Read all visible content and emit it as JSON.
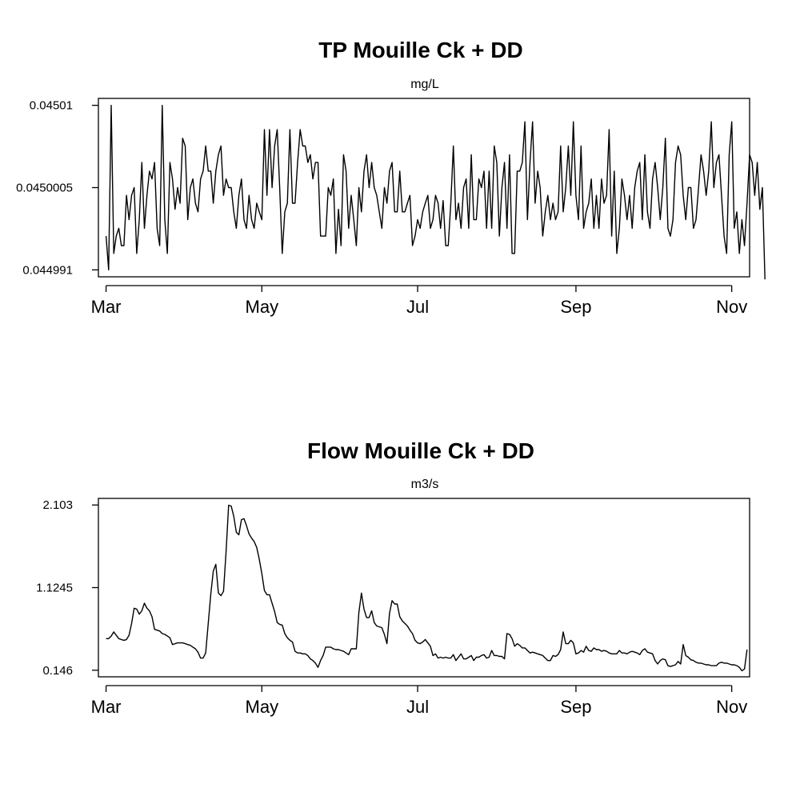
{
  "chart_data": [
    {
      "type": "line",
      "title": "TP Mouille Ck + DD",
      "subtitle": "mg/L",
      "xlabel": "",
      "ylabel": "",
      "x_ticks": [
        {
          "date": "2021-03-01",
          "label": "Mar"
        },
        {
          "date": "2021-05-01",
          "label": "May"
        },
        {
          "date": "2021-07-01",
          "label": "Jul"
        },
        {
          "date": "2021-09-01",
          "label": "Sep"
        },
        {
          "date": "2021-11-01",
          "label": "Nov"
        }
      ],
      "y_ticks": [
        {
          "value": 0.044991,
          "label": "0.044991"
        },
        {
          "value": 0.0450005,
          "label": "0.0450005"
        },
        {
          "value": 0.04501,
          "label": "0.04501"
        }
      ],
      "xlim": [
        "2021-02-26",
        "2021-11-08"
      ],
      "ylim": [
        0.0449902,
        0.0450108
      ],
      "grid": false,
      "legend": "none",
      "series": [
        {
          "start_date": "2021-03-01",
          "values": [
            0.0449949,
            0.044991,
            0.04501,
            0.0449929,
            0.0449949,
            0.0449958,
            0.0449938,
            0.0449938,
            0.0449996,
            0.0449968,
            0.0449996,
            0.0450005,
            0.0449929,
            0.0449968,
            0.0450034,
            0.0449958,
            0.0449996,
            0.0450024,
            0.0450015,
            0.0450034,
            0.0449958,
            0.0449938,
            0.04501,
            0.0449968,
            0.0449929,
            0.0450034,
            0.0450015,
            0.044998,
            0.0450005,
            0.0449987,
            0.0450062,
            0.0450053,
            0.0449968,
            0.0450005,
            0.0450015,
            0.0449987,
            0.0449977,
            0.0450015,
            0.0450024,
            0.0450053,
            0.0450024,
            0.0450024,
            0.0449987,
            0.0450024,
            0.0450043,
            0.0450053,
            0.0449996,
            0.0450015,
            0.0450005,
            0.0450005,
            0.0449977,
            0.0449958,
            0.0449996,
            0.0450015,
            0.0449968,
            0.0449958,
            0.0449996,
            0.0449968,
            0.0449958,
            0.0449987,
            0.0449977,
            0.0449968,
            0.0450072,
            0.0449996,
            0.0450072,
            0.0450005,
            0.0450053,
            0.0450072,
            0.0450005,
            0.0449929,
            0.0449977,
            0.0449987,
            0.0450072,
            0.0449987,
            0.0449987,
            0.0450034,
            0.0450072,
            0.0450053,
            0.0450053,
            0.0450034,
            0.0450043,
            0.0450015,
            0.0450034,
            0.0450034,
            0.0449949,
            0.0449949,
            0.0449949,
            0.0450005,
            0.0449996,
            0.0450015,
            0.0449929,
            0.044998,
            0.0449938,
            0.0450043,
            0.0450024,
            0.0449958,
            0.0449996,
            0.0449968,
            0.0449938,
            0.0450005,
            0.0449977,
            0.0450024,
            0.0450043,
            0.0450005,
            0.0450034,
            0.0450005,
            0.0449996,
            0.0449977,
            0.0449958,
            0.0450005,
            0.0449987,
            0.0450024,
            0.0450034,
            0.0449977,
            0.0449977,
            0.0450024,
            0.0449977,
            0.0449977,
            0.0449987,
            0.0449996,
            0.0449938,
            0.0449949,
            0.0449968,
            0.0449958,
            0.0449977,
            0.0449987,
            0.0449996,
            0.0449958,
            0.0449968,
            0.0449996,
            0.0449987,
            0.0449958,
            0.044999,
            0.0449938,
            0.0449938,
            0.0449987,
            0.0450053,
            0.0449968,
            0.0449987,
            0.0449958,
            0.0450005,
            0.0450015,
            0.0449958,
            0.0450043,
            0.0449968,
            0.0449968,
            0.0450015,
            0.0450005,
            0.0450024,
            0.0449958,
            0.0450024,
            0.0449958,
            0.0450053,
            0.0450034,
            0.0449949,
            0.0450005,
            0.0450034,
            0.0449958,
            0.0450043,
            0.0449929,
            0.0449929,
            0.0450024,
            0.0450024,
            0.0450034,
            0.0450081,
            0.0449968,
            0.0450034,
            0.0450081,
            0.0449987,
            0.0450024,
            0.0450005,
            0.0449949,
            0.0449977,
            0.0449996,
            0.0449968,
            0.0449987,
            0.0449968,
            0.0449977,
            0.0450053,
            0.0449977,
            0.0450005,
            0.0450053,
            0.0449996,
            0.0450081,
            0.0449996,
            0.0449968,
            0.0450053,
            0.0449958,
            0.0449977,
            0.0449987,
            0.0450015,
            0.0449958,
            0.0449996,
            0.0449958,
            0.0450015,
            0.0449987,
            0.0449996,
            0.0450072,
            0.0449949,
            0.0450024,
            0.0449929,
            0.0449958,
            0.0450015,
            0.0449996,
            0.0449968,
            0.0449996,
            0.0449958,
            0.0450005,
            0.0450024,
            0.0450034,
            0.0449968,
            0.0450043,
            0.0449977,
            0.0449958,
            0.0450015,
            0.0450034,
            0.0450005,
            0.0449968,
            0.0450005,
            0.0450062,
            0.0449958,
            0.0449949,
            0.0449968,
            0.0450034,
            0.0450053,
            0.0450043,
            0.0449996,
            0.0449968,
            0.0450005,
            0.0450005,
            0.0449958,
            0.0449968,
            0.0450005,
            0.0450043,
            0.0450024,
            0.0449996,
            0.0450024,
            0.0450081,
            0.0450005,
            0.0450034,
            0.0450043,
            0.0449996,
            0.0449949,
            0.0449929,
            0.0450043,
            0.0450081,
            0.0449958,
            0.0449977,
            0.0449929,
            0.0449968,
            0.0449938,
            0.0449987,
            0.0450043,
            0.0450034,
            0.0449996,
            0.0450034,
            0.044998,
            0.0450005,
            0.0449899
          ]
        }
      ]
    },
    {
      "type": "line",
      "title": "Flow Mouille Ck + DD",
      "subtitle": "m3/s",
      "xlabel": "",
      "ylabel": "",
      "x_ticks": [
        {
          "date": "2021-03-01",
          "label": "Mar"
        },
        {
          "date": "2021-05-01",
          "label": "May"
        },
        {
          "date": "2021-07-01",
          "label": "Jul"
        },
        {
          "date": "2021-09-01",
          "label": "Sep"
        },
        {
          "date": "2021-11-01",
          "label": "Nov"
        }
      ],
      "y_ticks": [
        {
          "value": 0.146,
          "label": "0.146"
        },
        {
          "value": 1.1245,
          "label": "1.1245"
        },
        {
          "value": 2.103,
          "label": "2.103"
        }
      ],
      "xlim": [
        "2021-02-26",
        "2021-11-08"
      ],
      "ylim": [
        0.068,
        2.181
      ],
      "grid": false,
      "legend": "none",
      "series": [
        {
          "start_date": "2021-03-01",
          "values": [
            0.52,
            0.52,
            0.55,
            0.6,
            0.56,
            0.52,
            0.51,
            0.5,
            0.51,
            0.56,
            0.7,
            0.88,
            0.87,
            0.81,
            0.85,
            0.94,
            0.88,
            0.85,
            0.78,
            0.63,
            0.62,
            0.61,
            0.58,
            0.57,
            0.55,
            0.53,
            0.45,
            0.46,
            0.47,
            0.47,
            0.47,
            0.46,
            0.45,
            0.44,
            0.42,
            0.4,
            0.36,
            0.29,
            0.29,
            0.35,
            0.7,
            1.05,
            1.32,
            1.4,
            1.06,
            1.03,
            1.08,
            1.55,
            2.1,
            2.09,
            1.97,
            1.78,
            1.75,
            1.93,
            1.94,
            1.86,
            1.76,
            1.71,
            1.67,
            1.6,
            1.46,
            1.29,
            1.09,
            1.04,
            1.04,
            0.94,
            0.84,
            0.71,
            0.69,
            0.68,
            0.58,
            0.53,
            0.5,
            0.48,
            0.37,
            0.35,
            0.35,
            0.34,
            0.34,
            0.32,
            0.28,
            0.26,
            0.23,
            0.18,
            0.26,
            0.32,
            0.42,
            0.42,
            0.42,
            0.4,
            0.39,
            0.39,
            0.38,
            0.37,
            0.35,
            0.33,
            0.4,
            0.4,
            0.4,
            0.83,
            1.06,
            0.87,
            0.77,
            0.77,
            0.85,
            0.71,
            0.67,
            0.66,
            0.65,
            0.57,
            0.46,
            0.82,
            0.97,
            0.93,
            0.93,
            0.78,
            0.73,
            0.7,
            0.67,
            0.62,
            0.58,
            0.5,
            0.47,
            0.46,
            0.48,
            0.51,
            0.47,
            0.43,
            0.32,
            0.34,
            0.29,
            0.3,
            0.29,
            0.3,
            0.29,
            0.29,
            0.33,
            0.26,
            0.3,
            0.34,
            0.28,
            0.28,
            0.3,
            0.32,
            0.26,
            0.3,
            0.3,
            0.32,
            0.33,
            0.29,
            0.3,
            0.38,
            0.32,
            0.32,
            0.31,
            0.31,
            0.28,
            0.58,
            0.57,
            0.52,
            0.43,
            0.46,
            0.44,
            0.41,
            0.41,
            0.38,
            0.35,
            0.36,
            0.35,
            0.34,
            0.33,
            0.32,
            0.29,
            0.26,
            0.26,
            0.32,
            0.31,
            0.33,
            0.39,
            0.6,
            0.46,
            0.46,
            0.5,
            0.47,
            0.34,
            0.35,
            0.38,
            0.36,
            0.43,
            0.38,
            0.37,
            0.41,
            0.39,
            0.39,
            0.37,
            0.38,
            0.37,
            0.35,
            0.34,
            0.34,
            0.34,
            0.38,
            0.35,
            0.35,
            0.34,
            0.36,
            0.37,
            0.36,
            0.35,
            0.33,
            0.38,
            0.4,
            0.36,
            0.35,
            0.34,
            0.26,
            0.22,
            0.26,
            0.28,
            0.27,
            0.2,
            0.19,
            0.2,
            0.21,
            0.25,
            0.22,
            0.45,
            0.32,
            0.3,
            0.27,
            0.26,
            0.24,
            0.23,
            0.23,
            0.22,
            0.21,
            0.21,
            0.2,
            0.2,
            0.2,
            0.23,
            0.24,
            0.23,
            0.23,
            0.22,
            0.21,
            0.21,
            0.2,
            0.18,
            0.14,
            0.16,
            0.39
          ]
        }
      ]
    }
  ]
}
